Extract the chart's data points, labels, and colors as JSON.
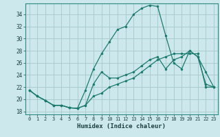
{
  "xlabel": "Humidex (Indice chaleur)",
  "background_color": "#cce8ec",
  "grid_color": "#aacccc",
  "line_color": "#1a7a6e",
  "ylim": [
    17.5,
    35.8
  ],
  "xlim": [
    -0.5,
    23.5
  ],
  "yticks": [
    18,
    20,
    22,
    24,
    26,
    28,
    30,
    32,
    34
  ],
  "xticks": [
    0,
    1,
    2,
    3,
    4,
    5,
    6,
    7,
    8,
    9,
    10,
    11,
    12,
    13,
    14,
    15,
    16,
    17,
    18,
    19,
    20,
    21,
    22,
    23
  ],
  "series1_x": [
    0,
    1,
    2,
    3,
    4,
    5,
    6,
    7,
    8,
    9,
    10,
    11,
    12,
    13,
    14,
    15,
    16,
    17,
    18,
    19,
    20,
    21,
    22,
    23
  ],
  "series1_y": [
    21.5,
    20.5,
    19.8,
    19.0,
    19.0,
    18.6,
    18.5,
    19.0,
    20.5,
    21.0,
    22.0,
    22.5,
    23.0,
    23.5,
    24.5,
    25.5,
    26.5,
    27.0,
    27.5,
    27.5,
    27.5,
    27.5,
    22.0,
    22.0
  ],
  "series2_x": [
    0,
    1,
    2,
    3,
    4,
    5,
    6,
    7,
    8,
    9,
    10,
    11,
    12,
    13,
    14,
    15,
    16,
    17,
    18,
    19,
    20,
    21,
    22,
    23
  ],
  "series2_y": [
    21.5,
    20.5,
    19.8,
    19.0,
    19.0,
    18.6,
    18.5,
    21.5,
    25.0,
    27.5,
    29.5,
    31.5,
    32.0,
    34.0,
    35.0,
    35.5,
    35.3,
    30.5,
    26.0,
    25.0,
    28.0,
    27.0,
    24.5,
    22.0
  ],
  "series3_x": [
    0,
    1,
    2,
    3,
    4,
    5,
    6,
    7,
    8,
    9,
    10,
    11,
    12,
    13,
    14,
    15,
    16,
    17,
    18,
    19,
    20,
    21,
    22,
    23
  ],
  "series3_y": [
    21.5,
    20.5,
    19.8,
    19.0,
    19.0,
    18.6,
    18.5,
    19.0,
    22.5,
    24.5,
    23.5,
    23.5,
    24.0,
    24.5,
    25.5,
    26.5,
    27.0,
    25.0,
    26.5,
    27.0,
    28.0,
    27.0,
    22.5,
    22.0
  ]
}
